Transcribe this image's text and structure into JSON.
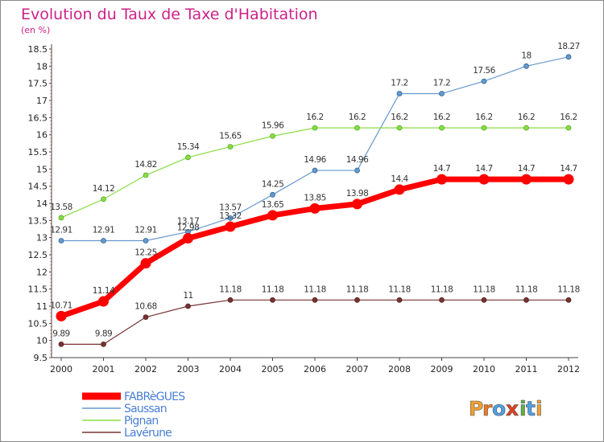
{
  "chart_data": {
    "type": "line",
    "title": "Evolution du Taux de Taxe d'Habitation",
    "subtitle": "(en %)",
    "x": [
      "2000",
      "2001",
      "2002",
      "2003",
      "2004",
      "2005",
      "2006",
      "2007",
      "2008",
      "2009",
      "2010",
      "2011",
      "2012"
    ],
    "yticks": [
      "9.5",
      "10",
      "10.5",
      "11",
      "11.5",
      "12",
      "12.5",
      "13",
      "13.5",
      "14",
      "14.5",
      "15",
      "15.5",
      "16",
      "16.5",
      "17",
      "17.5",
      "18",
      "18.5"
    ],
    "ylim": [
      9.5,
      18.5
    ],
    "grid": false,
    "legend_position": "bottom-left",
    "series": [
      {
        "name": "FABRèGUES",
        "color": "#ff0000",
        "values": [
          10.71,
          11.14,
          12.25,
          12.98,
          13.32,
          13.65,
          13.85,
          13.98,
          14.4,
          14.7,
          14.7,
          14.7,
          14.7
        ],
        "labels": [
          "10.71",
          "11.14",
          "12.25",
          "12.98",
          "13.32",
          "13.65",
          "13.85",
          "13.98",
          "14.4",
          "14.7",
          "14.7",
          "14.7",
          "14.7"
        ]
      },
      {
        "name": "Saussan",
        "color": "#6699cc",
        "values": [
          12.91,
          12.91,
          12.91,
          13.17,
          13.57,
          14.25,
          14.96,
          14.96,
          17.2,
          17.2,
          17.56,
          18,
          18.27
        ],
        "labels": [
          "12.91",
          "12.91",
          "12.91",
          "13.17",
          "13.57",
          "14.25",
          "14.96",
          "14.96",
          "17.2",
          "17.2",
          "17.56",
          "18",
          "18.27"
        ]
      },
      {
        "name": "Pignan",
        "color": "#88dd44",
        "values": [
          13.58,
          14.12,
          14.82,
          15.34,
          15.65,
          15.96,
          16.2,
          16.2,
          16.2,
          16.2,
          16.2,
          16.2,
          16.2
        ],
        "labels": [
          "13.58",
          "14.12",
          "14.82",
          "15.34",
          "15.65",
          "15.96",
          "16.2",
          "16.2",
          "16.2",
          "16.2",
          "16.2",
          "16.2",
          "16.2"
        ]
      },
      {
        "name": "Lavérune",
        "color": "#773333",
        "values": [
          9.89,
          9.89,
          10.68,
          11,
          11.18,
          11.18,
          11.18,
          11.18,
          11.18,
          11.18,
          11.18,
          11.18,
          11.18
        ],
        "labels": [
          "9.89",
          "9.89",
          "10.68",
          "11",
          "11.18",
          "11.18",
          "11.18",
          "11.18",
          "11.18",
          "11.18",
          "11.18",
          "11.18",
          "11.18"
        ]
      }
    ]
  },
  "colors": {
    "title": "#cc2288",
    "axis": "#444444",
    "legend_text": "#4a7fd4"
  },
  "logo": {
    "text": "Proxiti",
    "letters": [
      "P",
      "r",
      "o",
      "x",
      "i",
      "t",
      "i"
    ],
    "letter_colors": [
      "#f0a030",
      "#f07820",
      "#50a0e0",
      "#e04020",
      "#60b040",
      "#50a0e0",
      "#f0a030"
    ]
  }
}
